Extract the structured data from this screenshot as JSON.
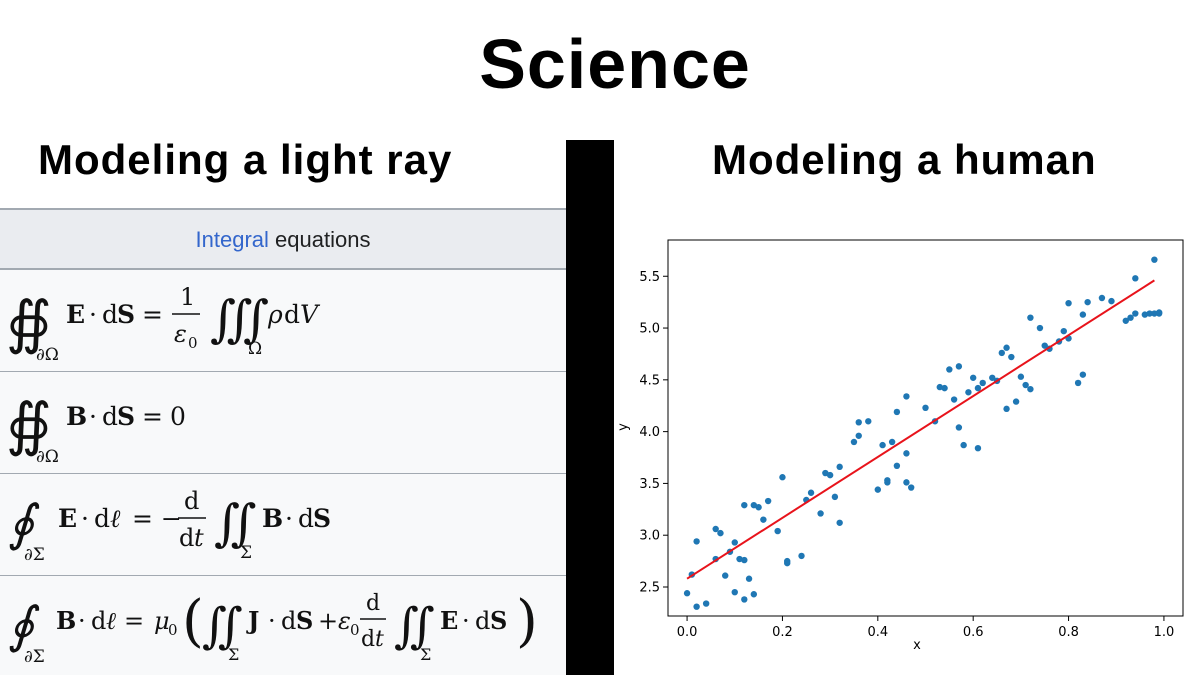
{
  "meme": {
    "title": "Science",
    "left_caption": "Modeling a light ray",
    "right_caption": "Modeling a human"
  },
  "equations": {
    "header_link": "Integral",
    "header_rest": " equations",
    "rows": [
      "∯∂Ω E · dS = 1/ε0 ∭Ω ρ dV",
      "∯∂Ω B · dS = 0",
      "∮∂Σ E · dℓ = − d/dt ∬Σ B · dS",
      "∮∂Σ B · dℓ = μ0 ( ∬Σ J · dS + ε0 d/dt ∬Σ E · dS )"
    ]
  },
  "chart_data": {
    "type": "scatter",
    "title": "",
    "xlabel": "x",
    "ylabel": "y",
    "xlim": [
      -0.04,
      1.04
    ],
    "ylim": [
      2.22,
      5.85
    ],
    "xticks": [
      "0.0",
      "0.2",
      "0.4",
      "0.6",
      "0.8",
      "1.0"
    ],
    "yticks": [
      "2.5",
      "3.0",
      "3.5",
      "4.0",
      "4.5",
      "5.0",
      "5.5"
    ],
    "colors": {
      "points": "#1f77b4",
      "line": "#e8131b"
    },
    "fit_line": {
      "x": [
        0.0,
        0.98
      ],
      "y": [
        2.58,
        5.46
      ]
    },
    "points": [
      [
        0.0,
        2.44
      ],
      [
        0.01,
        2.62
      ],
      [
        0.02,
        2.31
      ],
      [
        0.02,
        2.94
      ],
      [
        0.04,
        2.34
      ],
      [
        0.06,
        3.06
      ],
      [
        0.06,
        2.77
      ],
      [
        0.07,
        3.02
      ],
      [
        0.08,
        2.61
      ],
      [
        0.09,
        2.84
      ],
      [
        0.1,
        2.45
      ],
      [
        0.1,
        2.93
      ],
      [
        0.11,
        2.77
      ],
      [
        0.12,
        2.76
      ],
      [
        0.12,
        2.38
      ],
      [
        0.12,
        3.29
      ],
      [
        0.13,
        2.58
      ],
      [
        0.14,
        3.29
      ],
      [
        0.14,
        2.43
      ],
      [
        0.15,
        3.27
      ],
      [
        0.16,
        3.15
      ],
      [
        0.17,
        3.33
      ],
      [
        0.19,
        3.04
      ],
      [
        0.2,
        3.56
      ],
      [
        0.21,
        2.73
      ],
      [
        0.21,
        2.75
      ],
      [
        0.24,
        2.8
      ],
      [
        0.25,
        3.34
      ],
      [
        0.26,
        3.41
      ],
      [
        0.28,
        3.21
      ],
      [
        0.29,
        3.6
      ],
      [
        0.3,
        3.58
      ],
      [
        0.31,
        3.37
      ],
      [
        0.32,
        3.12
      ],
      [
        0.32,
        3.66
      ],
      [
        0.35,
        3.9
      ],
      [
        0.36,
        4.09
      ],
      [
        0.36,
        3.96
      ],
      [
        0.38,
        4.1
      ],
      [
        0.4,
        3.44
      ],
      [
        0.41,
        3.87
      ],
      [
        0.42,
        3.53
      ],
      [
        0.42,
        3.51
      ],
      [
        0.43,
        3.9
      ],
      [
        0.44,
        4.19
      ],
      [
        0.44,
        3.67
      ],
      [
        0.46,
        3.51
      ],
      [
        0.46,
        4.34
      ],
      [
        0.46,
        3.79
      ],
      [
        0.47,
        3.46
      ],
      [
        0.5,
        4.23
      ],
      [
        0.52,
        4.1
      ],
      [
        0.53,
        4.43
      ],
      [
        0.54,
        4.42
      ],
      [
        0.55,
        4.6
      ],
      [
        0.56,
        4.31
      ],
      [
        0.57,
        4.04
      ],
      [
        0.57,
        4.63
      ],
      [
        0.58,
        3.87
      ],
      [
        0.59,
        4.38
      ],
      [
        0.6,
        4.52
      ],
      [
        0.61,
        3.84
      ],
      [
        0.61,
        4.42
      ],
      [
        0.62,
        4.47
      ],
      [
        0.64,
        4.52
      ],
      [
        0.65,
        4.49
      ],
      [
        0.66,
        4.76
      ],
      [
        0.67,
        4.81
      ],
      [
        0.67,
        4.22
      ],
      [
        0.68,
        4.72
      ],
      [
        0.69,
        4.29
      ],
      [
        0.7,
        4.53
      ],
      [
        0.71,
        4.45
      ],
      [
        0.72,
        4.41
      ],
      [
        0.72,
        5.1
      ],
      [
        0.74,
        5.0
      ],
      [
        0.75,
        4.83
      ],
      [
        0.76,
        4.8
      ],
      [
        0.78,
        4.87
      ],
      [
        0.79,
        4.97
      ],
      [
        0.8,
        4.9
      ],
      [
        0.8,
        5.24
      ],
      [
        0.82,
        4.47
      ],
      [
        0.83,
        4.55
      ],
      [
        0.83,
        5.13
      ],
      [
        0.84,
        5.25
      ],
      [
        0.87,
        5.29
      ],
      [
        0.89,
        5.26
      ],
      [
        0.92,
        5.07
      ],
      [
        0.93,
        5.1
      ],
      [
        0.94,
        5.48
      ],
      [
        0.94,
        5.14
      ],
      [
        0.96,
        5.13
      ],
      [
        0.97,
        5.14
      ],
      [
        0.98,
        5.66
      ],
      [
        0.98,
        5.14
      ],
      [
        0.99,
        5.14
      ],
      [
        0.99,
        5.15
      ]
    ]
  }
}
